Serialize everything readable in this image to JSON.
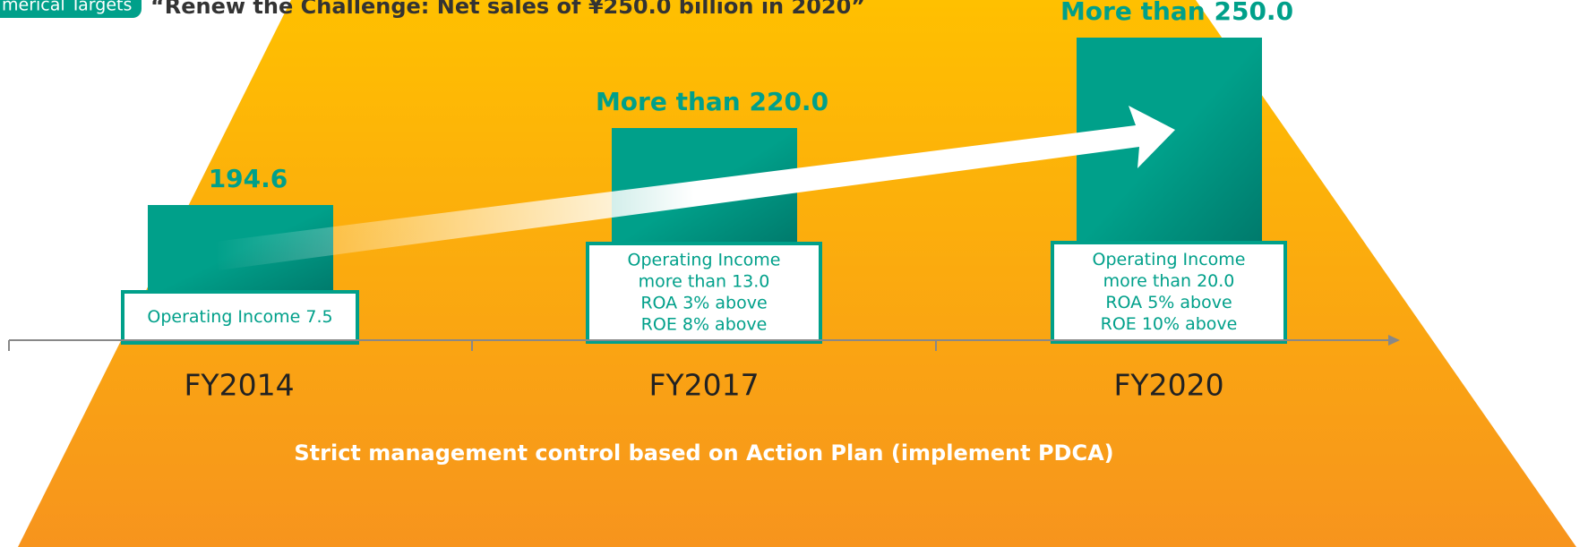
{
  "header": {
    "tag": "merical Targets",
    "title": "“Renew the Challenge: Net sales of ¥250.0 billion in 2020”"
  },
  "columns": [
    {
      "year": "FY2014",
      "label": "194.6",
      "notes": [
        "Operating Income 7.5"
      ]
    },
    {
      "year": "FY2017",
      "label": "More than 220.0",
      "notes": [
        "Operating Income",
        "more than 13.0",
        "ROA 3% above",
        "ROE 8% above"
      ]
    },
    {
      "year": "FY2020",
      "label": "More than 250.0",
      "notes": [
        "Operating Income",
        "more than 20.0",
        "ROA 5% above",
        "ROE 10% above"
      ]
    }
  ],
  "footer": "Strict management control based on Action Plan (implement PDCA)"
}
